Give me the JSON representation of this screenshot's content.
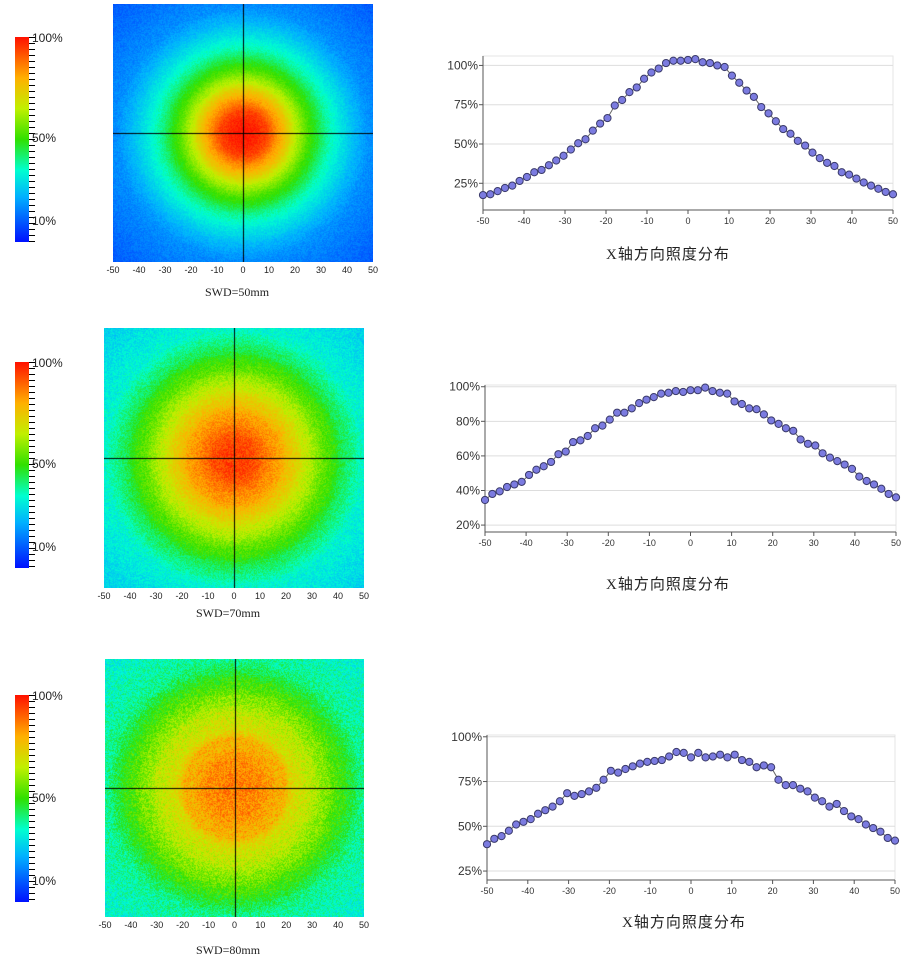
{
  "colorbar": {
    "labels": [
      "100%",
      "50%",
      "10%"
    ]
  },
  "heatmaps": [
    {
      "label": "SWD=50mm",
      "xticks": [
        "-50",
        "-40",
        "-30",
        "-20",
        "-10",
        "0",
        "10",
        "20",
        "30",
        "40",
        "50"
      ]
    },
    {
      "label": "SWD=70mm",
      "xticks": [
        "-50",
        "-40",
        "-30",
        "-20",
        "-10",
        "0",
        "10",
        "20",
        "30",
        "40",
        "50"
      ]
    },
    {
      "label": "SWD=80mm",
      "xticks": [
        "-50",
        "-40",
        "-30",
        "-20",
        "-10",
        "0",
        "10",
        "20",
        "30",
        "40",
        "50"
      ]
    }
  ],
  "colors": {
    "marker": "#7b7be0",
    "marker_edge": "#3a3a6a",
    "grid": "#dddddd"
  },
  "chart_data": [
    {
      "type": "line",
      "title": "X轴方向照度分布",
      "xlabel": "",
      "ylabel": "",
      "xlim": [
        -50,
        50
      ],
      "ylim": [
        8,
        106
      ],
      "xticks": [
        -50,
        -40,
        -30,
        -20,
        -10,
        0,
        10,
        20,
        30,
        40,
        50
      ],
      "yticks": [
        25,
        50,
        75,
        100
      ],
      "ytick_labels": [
        "25%",
        "50%",
        "75%",
        "100%"
      ],
      "values": [
        17.5,
        18,
        20,
        22,
        23.5,
        26.5,
        29,
        32,
        33.5,
        36.5,
        39.5,
        42.5,
        46.5,
        50.5,
        53,
        58.5,
        63,
        66.5,
        74.5,
        78,
        83,
        86,
        91.5,
        95.5,
        98,
        101.5,
        103,
        103,
        103.5,
        104,
        102,
        101.5,
        100,
        99,
        93.5,
        89,
        84,
        80,
        73.5,
        69.5,
        64.5,
        59.5,
        56.5,
        52,
        49,
        44.5,
        41,
        38,
        36,
        32,
        30.5,
        28,
        25.5,
        23.5,
        21.5,
        19.5,
        18
      ]
    },
    {
      "type": "line",
      "title": "X轴方向照度分布",
      "xlabel": "",
      "ylabel": "",
      "xlim": [
        -50,
        50
      ],
      "ylim": [
        16,
        101
      ],
      "xticks": [
        -50,
        -40,
        -30,
        -20,
        -10,
        0,
        10,
        20,
        30,
        40,
        50
      ],
      "yticks": [
        20,
        40,
        60,
        80,
        100
      ],
      "ytick_labels": [
        "20%",
        "40%",
        "60%",
        "80%",
        "100%"
      ],
      "values": [
        34.5,
        38,
        39.5,
        42,
        43.5,
        45,
        49,
        52,
        54,
        56.5,
        61,
        62.5,
        68,
        69,
        71.5,
        76,
        77.5,
        81,
        85,
        85,
        87.5,
        90.5,
        92.5,
        94,
        96,
        96.5,
        97.5,
        97,
        98,
        98,
        99.5,
        97.5,
        96.5,
        96,
        91.5,
        90,
        87.5,
        87,
        84,
        80.5,
        78.5,
        76,
        74.5,
        69.5,
        67,
        66,
        61.5,
        59,
        57,
        55,
        52.5,
        48,
        45.5,
        43.5,
        41,
        38,
        36
      ]
    },
    {
      "type": "line",
      "title": "X轴方向照度分布",
      "xlabel": "",
      "ylabel": "",
      "xlim": [
        -50,
        50
      ],
      "ylim": [
        20,
        101
      ],
      "xticks": [
        -50,
        -40,
        -30,
        -20,
        -10,
        0,
        10,
        20,
        30,
        40,
        50
      ],
      "yticks": [
        25,
        50,
        75,
        100
      ],
      "ytick_labels": [
        "25%",
        "50%",
        "75%",
        "100%"
      ],
      "values": [
        40,
        43,
        44.5,
        47.5,
        51,
        52.5,
        54,
        57,
        59,
        61,
        64,
        68.5,
        67,
        68,
        69.5,
        71.5,
        76,
        81,
        80,
        82,
        83.5,
        85,
        86,
        86.5,
        87,
        89,
        91.5,
        91,
        88.5,
        91,
        88.5,
        89,
        90,
        88.5,
        90,
        87,
        86,
        83,
        84,
        83,
        76,
        73,
        73,
        71,
        69.5,
        66,
        64,
        61,
        62.5,
        58.5,
        55.5,
        54,
        51,
        49,
        47,
        43.5,
        42
      ]
    }
  ]
}
